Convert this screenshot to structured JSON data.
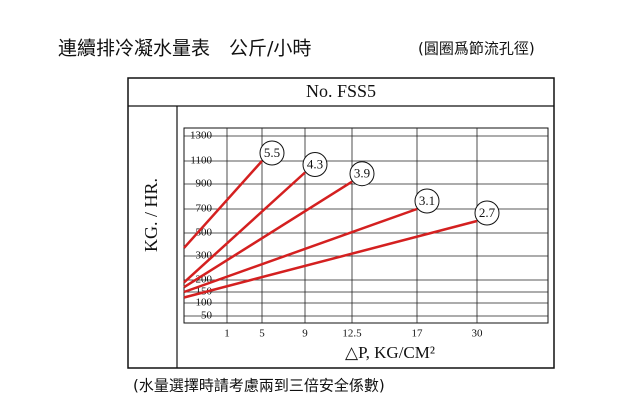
{
  "header": {
    "title": "連續排冷凝水量表　公斤/小時",
    "note": "(圓圈爲節流孔徑)"
  },
  "chart_data": {
    "type": "line",
    "title": "No. FSS5",
    "y_label": "KG. / HR.",
    "x_label": "△P,  KG/CM²",
    "xlim": [
      0,
      35
    ],
    "xticks": [
      1,
      5,
      9,
      12.5,
      17,
      30
    ],
    "ylim": [
      20,
      1365
    ],
    "yticks": [
      50,
      100,
      150,
      200,
      300,
      500,
      700,
      900,
      1100,
      1300
    ],
    "grid": true,
    "series": [
      {
        "name": "5.5",
        "color": "#d42020",
        "x": [
          0,
          5
        ],
        "values": [
          370,
          1100
        ]
      },
      {
        "name": "4.3",
        "color": "#d42020",
        "x": [
          0,
          9
        ],
        "values": [
          190,
          1000
        ]
      },
      {
        "name": "3.9",
        "color": "#d42020",
        "x": [
          0,
          12.5
        ],
        "values": [
          170,
          920
        ]
      },
      {
        "name": "3.1",
        "color": "#d42020",
        "x": [
          0,
          17
        ],
        "values": [
          150,
          700
        ]
      },
      {
        "name": "2.7",
        "color": "#d42020",
        "x": [
          0,
          30
        ],
        "values": [
          125,
          600
        ]
      }
    ]
  },
  "footer": "(水量選擇時請考慮兩到三倍安全係數)"
}
